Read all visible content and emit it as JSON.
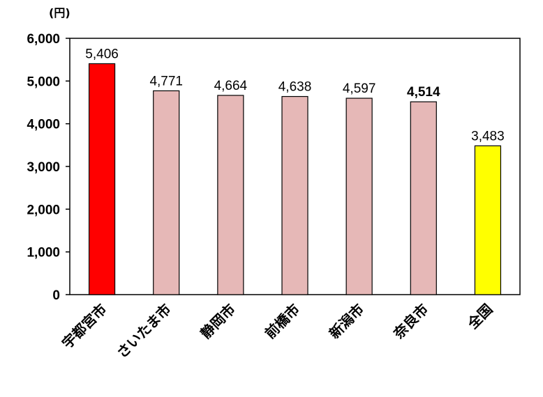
{
  "chart_data": {
    "type": "bar",
    "unit_label": "(円)",
    "categories": [
      "宇都宮市",
      "さいたま市",
      "静岡市",
      "前橋市",
      "新潟市",
      "奈良市",
      "全国"
    ],
    "values": [
      5406,
      4771,
      4664,
      4638,
      4597,
      4514,
      3483
    ],
    "value_labels": [
      "5,406",
      "4,771",
      "4,664",
      "4,638",
      "4,597",
      "4,514",
      "3,483"
    ],
    "bold_value_index": 5,
    "bar_colors": [
      "#ff0000",
      "#e6b8b7",
      "#e6b8b7",
      "#e6b8b7",
      "#e6b8b7",
      "#e6b8b7",
      "#ffff00"
    ],
    "yticks": [
      0,
      1000,
      2000,
      3000,
      4000,
      5000,
      6000
    ],
    "ytick_labels": [
      "0",
      "1,000",
      "2,000",
      "3,000",
      "4,000",
      "5,000",
      "6,000"
    ],
    "ylim": [
      0,
      6000
    ],
    "grid": false,
    "legend": "none"
  }
}
